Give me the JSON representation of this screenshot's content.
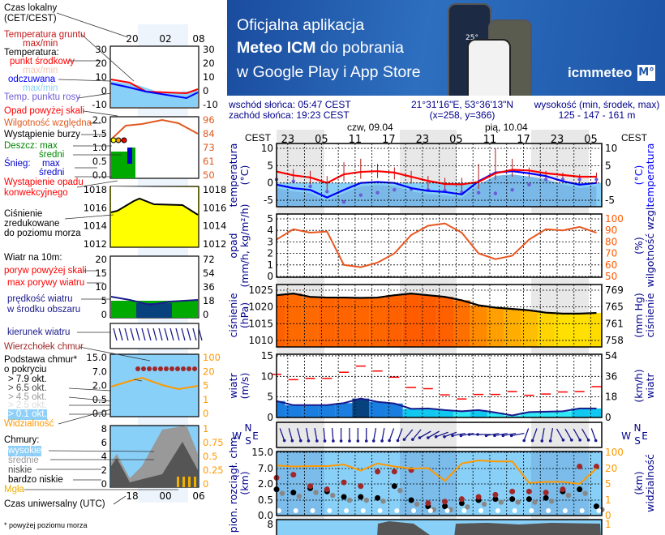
{
  "banner": {
    "line1": "Oficjalna aplikacja",
    "line2_bold": "Meteo ICM",
    "line2_rest": " do pobrania",
    "line3": "w Google Play i App Store",
    "logo": "icmmeteo",
    "logo_badge": "M°",
    "phone_temp": "25°"
  },
  "header": {
    "sunrise": "wschód słońca: 05:47 CEST",
    "sunset": "zachód słońca: 19:23 CEST",
    "coords": "21°31'16\"E, 53°36'13\"N",
    "grid": "(x=258,  y=366)",
    "elev_label": "wysokość (min, środek, max)",
    "elev_value": "125 - 147 - 161 m",
    "day1": "czw, 09.04",
    "day2": "pią, 10.04",
    "tz": "CEST"
  },
  "legend": {
    "items": [
      "Czas lokalny",
      "(CET/CEST)",
      "Temperatura gruntu",
      "max/min",
      "Temperatura:",
      "punkt środkowy",
      "max/min",
      "odczuwana",
      "max/min",
      "Temp. punktu rosy",
      "Opad powyżej skali",
      "Wilgotność względna",
      "Wystąpienie burzy",
      "Deszcz: max",
      "średni",
      "Śnieg:",
      "max",
      "średni",
      "Wystąpienie opadu",
      "konwekcyjnego",
      "Ciśnienie",
      "zredukowane",
      "do poziomu morza",
      "Wiatr na 10m:",
      "poryw powyżej skali",
      "max porywy wiatru",
      "prędkość wiatru",
      "w środku obszaru",
      "kierunek wiatru",
      "Wierzchołek chmur",
      "Podstawa chmur*",
      "o pokryciu",
      "> 7.9 okt.",
      "> 6.5 okt.",
      "> 4.5 okt.",
      "> 2.5 okt.",
      "> 0.1 okt.",
      "Widzialność",
      "Chmury:",
      "wysokie",
      "średnie",
      "niskie",
      "bardzo niskie",
      "Mgła",
      "Czas uniwersalny (UTC)",
      "* powyżej poziomu morza"
    ],
    "top_hours": [
      "20",
      "02",
      "08"
    ],
    "bottom_hours": [
      "18",
      "00",
      "06"
    ],
    "ticks": {
      "temp_l": [
        "30",
        "20",
        "10",
        "0",
        "-10"
      ],
      "temp_r": [
        "30",
        "20",
        "10",
        "0",
        "-10"
      ],
      "prec_l": [
        "2.0",
        "1.5",
        "1.0",
        "0.5",
        "0.0"
      ],
      "prec_r": [
        "96",
        "84",
        "73",
        "61",
        "50"
      ],
      "pres_l": [
        "1018",
        "1016",
        "1014",
        "1012"
      ],
      "pres_r": [
        "1018",
        "1016",
        "1014",
        "1012"
      ],
      "wind_l": [
        "20",
        "15",
        "10",
        "5",
        "0"
      ],
      "wind_r": [
        "72",
        "54",
        "36",
        "18",
        "0"
      ],
      "cb_l": [
        "15.0",
        "7.0",
        "2.0",
        "0.5",
        "0.0"
      ],
      "cb_r": [
        "100",
        "20",
        "5",
        "1",
        "0"
      ],
      "cl_l": [
        "8",
        "6",
        "4",
        "2",
        "0"
      ],
      "cl_r": [
        "1",
        "0.75",
        "0.5",
        "0.25",
        "0"
      ]
    }
  },
  "chart_data": {
    "type": "line",
    "title": "Meteogram",
    "time_step_hours": 3,
    "x": [
      "21",
      "00",
      "03",
      "06",
      "09",
      "12",
      "15",
      "18",
      "21",
      "00",
      "03",
      "06",
      "09",
      "12",
      "15",
      "18",
      "21",
      "00",
      "03",
      "06"
    ],
    "hour_labels": [
      "23",
      "05",
      "11",
      "17",
      "23",
      "05",
      "11",
      "17",
      "23",
      "05"
    ],
    "panels": {
      "temperature": {
        "ylabel": "temperatura",
        "unit": "(°C)",
        "ylim": [
          -6.4,
          11.4
        ],
        "ticks_l": [
          "10",
          "5",
          "0",
          "-5"
        ],
        "ticks_r": [
          "10",
          "5",
          "0",
          "-5"
        ],
        "series": [
          {
            "name": "temperatura",
            "color": "#ff0000",
            "values": [
              3.3,
              2.2,
              1.6,
              0,
              2.5,
              3.2,
              3.4,
              3.0,
              1.8,
              0.6,
              -0.3,
              -0.4,
              0.3,
              2.8,
              3.8,
              3.6,
              2.8,
              2.3,
              1.8,
              1.8
            ]
          },
          {
            "name": "odczuwana",
            "color": "#0000ff",
            "values": [
              -0.5,
              -1.5,
              -2,
              -4.2,
              -2,
              0,
              0.3,
              0,
              -1.5,
              -2.3,
              -2.6,
              -3.3,
              0.5,
              3,
              3.4,
              2.8,
              2,
              0.5,
              -0.5,
              0
            ]
          },
          {
            "name": "punkt rosy",
            "color": "#6b5bd6",
            "values": [
              1,
              0.5,
              -1,
              -2.5,
              -5.5,
              -3.5,
              -2.8,
              -2,
              -1.8,
              -2,
              -2.2,
              -2.7,
              -2.8,
              -3,
              -2,
              -0.5,
              1,
              1,
              1,
              1
            ]
          },
          {
            "name": "temperatura gruntu max",
            "color": "#b01818",
            "values": [
              4.5,
              4,
              3.5,
              2,
              6,
              7,
              5.5,
              4.5,
              3.5,
              2,
              1.5,
              1.5,
              5.5,
              10,
              7,
              4.5,
              3.5,
              3,
              2.5,
              3
            ]
          }
        ]
      },
      "precip_humidity": {
        "ylabel": "opad",
        "unit": "(mm/h, kg/m²/h)",
        "ylabel_r": "wilgotność wzgl.",
        "unit_r": "(%)",
        "ticks_l": [
          "5",
          "4",
          "3",
          "2",
          "1",
          "0"
        ],
        "ticks_r": [
          "100",
          "90",
          "80",
          "70",
          "60",
          "50"
        ],
        "precip": [
          0,
          0,
          0,
          0,
          0,
          0,
          0,
          0,
          0,
          0,
          0,
          0,
          0,
          0,
          0,
          0,
          0,
          0,
          0,
          0
        ],
        "humidity": {
          "color": "#e8561e",
          "values": [
            82,
            91,
            88,
            89,
            60,
            58,
            62,
            70,
            86,
            94,
            96,
            88,
            70,
            65,
            68,
            82,
            91,
            90,
            93,
            88
          ]
        }
      },
      "pressure": {
        "ylabel": "ciśnienie",
        "unit": "(hPa)",
        "ylabel_r": "ciśnienie",
        "unit_r": "(mm Hg)",
        "ticks_l": [
          "1025",
          "1020",
          "1015",
          "1010"
        ],
        "ticks_r": [
          "769",
          "765",
          "761",
          "758"
        ],
        "values": [
          1023.5,
          1024,
          1023,
          1022.8,
          1022.8,
          1022.7,
          1022.8,
          1023.5,
          1024,
          1023.5,
          1023,
          1022,
          1020.5,
          1019.8,
          1019.4,
          1019,
          1018.3,
          1018,
          1018,
          1018.2
        ]
      },
      "wind": {
        "ylabel": "wiatr",
        "unit": "(m/s)",
        "ylabel_r": "wiatr",
        "unit_r": "(km/h)",
        "ticks_l": [
          "15",
          "10",
          "5",
          "0"
        ],
        "ticks_r": [
          "54",
          "36",
          "18",
          "0"
        ],
        "speed": [
          4,
          3,
          3,
          3,
          3.5,
          4.6,
          3.8,
          3.4,
          2.1,
          2.2,
          1.8,
          1.5,
          1.8,
          1.2,
          0.5,
          1.3,
          1.4,
          1.5,
          2.2,
          2.2
        ],
        "gusts": [
          10.5,
          9.2,
          9.5,
          9.5,
          11,
          12.5,
          11.3,
          9.8,
          7.3,
          7,
          5.5,
          4.5,
          5.6,
          5.6,
          6.3,
          5.4,
          5.7,
          6.2,
          6.3,
          7.5
        ],
        "direction_deg": [
          340,
          345,
          350,
          355,
          0,
          0,
          10,
          20,
          40,
          60,
          70,
          80,
          90,
          80,
          80,
          20,
          10,
          330,
          330,
          340
        ],
        "compass": {
          "n": "N",
          "s": "S",
          "w": "W",
          "e": "E"
        }
      },
      "clouds": {
        "ylabel": "pion. rozciągł. chm.",
        "unit": "(km)",
        "ylabel_r": "widzialność",
        "unit_r": "(km)",
        "ticks_l": [
          "15.0",
          "7.0",
          "2.0",
          "0.5",
          "0.0"
        ],
        "ticks_r": [
          "100",
          "20",
          "5",
          "1",
          "0"
        ],
        "visibility": {
          "color": "#ff9900",
          "values": [
            35,
            30,
            32,
            32,
            40,
            18,
            45,
            30,
            20,
            22,
            8,
            45,
            60,
            55,
            55,
            6,
            7,
            7,
            5,
            20
          ]
        },
        "cloud_top": [
          4,
          5,
          1.8,
          1.5,
          2.5,
          1.8,
          6,
          6,
          6.5,
          0.4,
          0.45,
          0.6,
          0.8,
          1,
          1.3,
          1.3,
          1.2,
          1.5,
          8,
          8
        ],
        "cloud_base": [
          1.5,
          1.2,
          1.6,
          1.3,
          0.8,
          0.8,
          0.7,
          1.8,
          0.5,
          0.3,
          0.3,
          0.4,
          0.5,
          0.6,
          0.6,
          0.6,
          0.7,
          1.3,
          1.5,
          0.3
        ]
      },
      "cloud_cover": {
        "ticks_l": [
          "8"
        ],
        "ticks_r": [
          "1"
        ]
      }
    }
  }
}
